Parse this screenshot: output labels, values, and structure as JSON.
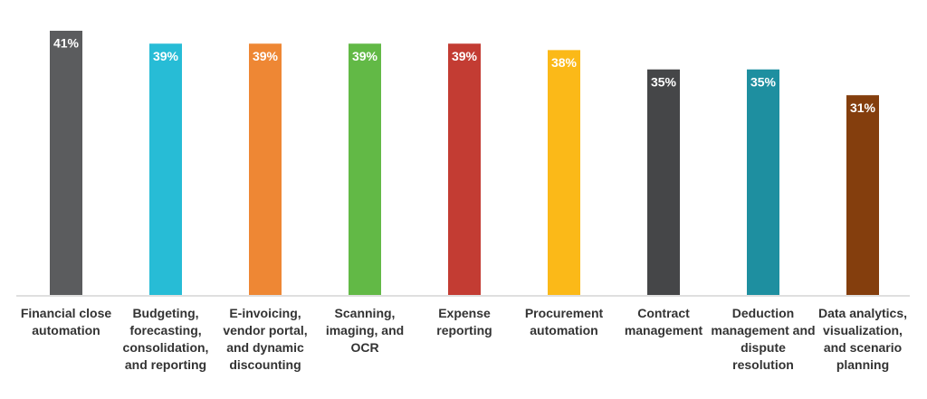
{
  "chart_data": {
    "type": "bar",
    "categories": [
      "Financial close automation",
      "Budgeting, forecasting, consolidation, and reporting",
      "E-invoicing, vendor portal, and dynamic discounting",
      "Scanning, imaging, and OCR",
      "Expense reporting",
      "Procurement automation",
      "Contract management",
      "Deduction management and dispute resolution",
      "Data analytics, visualization, and scenario planning"
    ],
    "values": [
      41,
      39,
      39,
      39,
      39,
      38,
      35,
      35,
      31
    ],
    "value_labels": [
      "41%",
      "39%",
      "39%",
      "39%",
      "39%",
      "38%",
      "35%",
      "35%",
      "31%"
    ],
    "colors": [
      "#5b5c5e",
      "#27bcd6",
      "#ee8734",
      "#62b946",
      "#c33c33",
      "#fbb918",
      "#454648",
      "#1e8fa0",
      "#843e0d"
    ],
    "ylim": [
      0,
      41
    ]
  }
}
